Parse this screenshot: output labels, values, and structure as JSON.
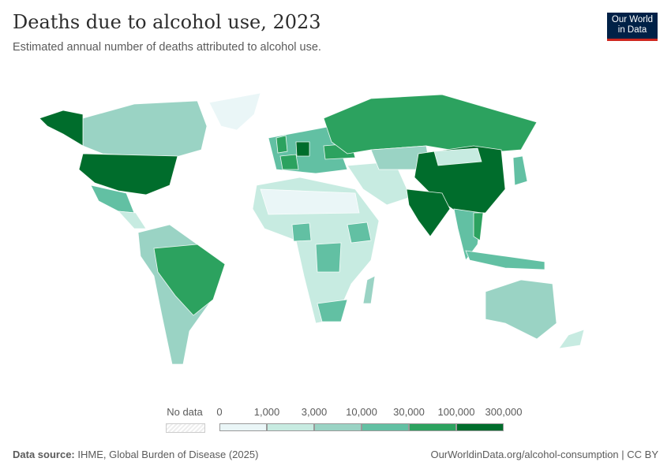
{
  "header": {
    "title": "Deaths due to alcohol use, 2023",
    "subtitle": "Estimated annual number of deaths attributed to alcohol use.",
    "logo_line1": "Our World",
    "logo_line2": "in Data"
  },
  "chart_data": {
    "type": "choropleth",
    "legend": {
      "no_data_label": "No data",
      "ticks": [
        "0",
        "1,000",
        "3,000",
        "10,000",
        "30,000",
        "100,000",
        "300,000"
      ],
      "bins": [
        [
          0,
          1000
        ],
        [
          1000,
          3000
        ],
        [
          3000,
          10000
        ],
        [
          10000,
          30000
        ],
        [
          30000,
          100000
        ],
        [
          100000,
          300000
        ]
      ],
      "colors": [
        "#eaf6f7",
        "#c7ebe1",
        "#9ad3c4",
        "#62c0a3",
        "#2ca25f",
        "#006d2c"
      ],
      "no_data_color": "#eeeeee"
    },
    "country_bins": {
      "canada": 2,
      "alaska": 5,
      "united-states": 5,
      "greenland": 0,
      "mexico": 3,
      "central-america": 1,
      "south-america": 2,
      "brazil": 4,
      "europe": 3,
      "germany": 5,
      "france": 4,
      "united-kingdom": 4,
      "ukraine": 4,
      "russia": 4,
      "africa": 1,
      "north-africa": 0,
      "nigeria": 3,
      "ethiopia": 3,
      "drc": 3,
      "south-africa": 3,
      "middle-east": 1,
      "kazakhstan": 2,
      "mongolia": 1,
      "china": 5,
      "india": 5,
      "southeast-asia": 3,
      "vietnam": 4,
      "indonesia": 3,
      "japan": 3,
      "australia": 2,
      "new-zealand": 1,
      "madagascar": 2
    }
  },
  "footer": {
    "source_label": "Data source:",
    "source": "IHME, Global Burden of Disease (2025)",
    "url": "OurWorldinData.org/alcohol-consumption | CC BY"
  }
}
